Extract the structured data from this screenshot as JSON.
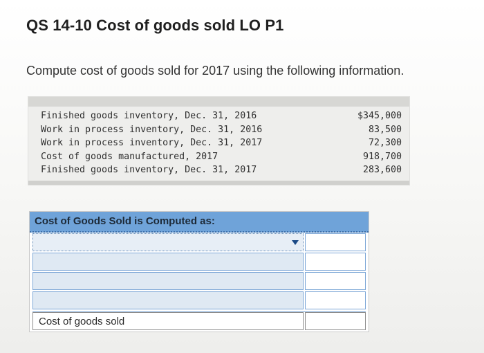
{
  "header": {
    "title": "QS 14-10 Cost of goods sold LO P1",
    "prompt": "Compute cost of goods sold for 2017 using the following information."
  },
  "info_table": {
    "rows": [
      {
        "label": "Finished goods inventory, Dec. 31, 2016",
        "amount": "$345,000"
      },
      {
        "label": "Work in process inventory, Dec. 31, 2016",
        "amount": "83,500"
      },
      {
        "label": "Work in process inventory, Dec. 31, 2017",
        "amount": "72,300"
      },
      {
        "label": "Cost of goods manufactured, 2017",
        "amount": "918,700"
      },
      {
        "label": "Finished goods inventory, Dec. 31, 2017",
        "amount": "283,600"
      }
    ]
  },
  "answer_table": {
    "header": "Cost of Goods Sold is Computed as:",
    "rows": [
      {
        "left": "",
        "right": ""
      },
      {
        "left": "",
        "right": ""
      },
      {
        "left": "",
        "right": ""
      },
      {
        "left": "",
        "right": ""
      }
    ],
    "final_label": "Cost of goods sold",
    "final_amount": ""
  },
  "colors": {
    "header_blue": "#6fa3d9",
    "input_blue": "#dfe9f3",
    "border_blue": "#7ba6d6"
  },
  "icons": {
    "dropdown": "chevron-down-icon",
    "marker": "triangle-right-icon"
  }
}
